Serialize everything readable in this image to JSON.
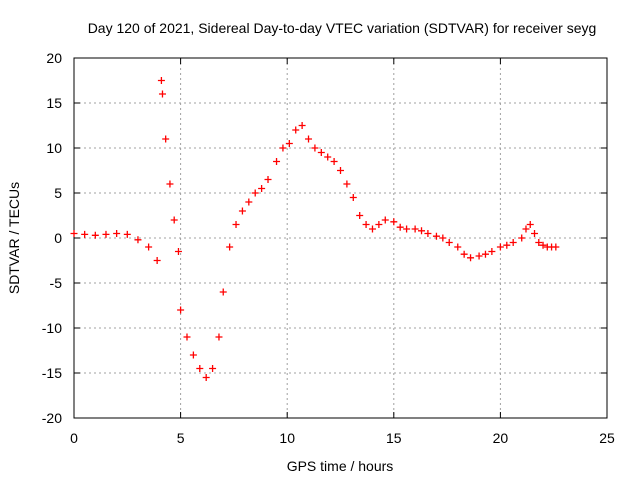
{
  "chart_data": {
    "type": "scatter",
    "title": "Day 120 of 2021, Sidereal Day-to-day VTEC variation (SDTVAR) for receiver seyg",
    "xlabel": "GPS time / hours",
    "ylabel": "SDTVAR / TECUs",
    "xlim": [
      0,
      25
    ],
    "ylim": [
      -20,
      20
    ],
    "xticks": [
      0,
      5,
      10,
      15,
      20,
      25
    ],
    "yticks": [
      -20,
      -15,
      -10,
      -5,
      0,
      5,
      10,
      15,
      20
    ],
    "xtick_labels": [
      "0",
      "5",
      "10",
      "15",
      "20",
      "25"
    ],
    "ytick_labels": [
      "-20",
      "-15",
      "-10",
      "-5",
      "0",
      "5",
      "10",
      "15",
      "20"
    ],
    "grid": true,
    "marker": "+",
    "series_color": "#ff0000",
    "series": [
      {
        "name": "SDTVAR",
        "x": [
          0.0,
          0.5,
          1.0,
          1.5,
          2.0,
          2.5,
          3.0,
          3.5,
          3.9,
          4.1,
          4.15,
          4.3,
          4.5,
          4.7,
          4.9,
          5.0,
          5.3,
          5.6,
          5.9,
          6.2,
          6.5,
          6.8,
          7.0,
          7.3,
          7.6,
          7.9,
          8.2,
          8.5,
          8.8,
          9.1,
          9.5,
          9.8,
          10.1,
          10.4,
          10.7,
          11.0,
          11.3,
          11.6,
          11.9,
          12.2,
          12.5,
          12.8,
          13.1,
          13.4,
          13.7,
          14.0,
          14.3,
          14.6,
          15.0,
          15.3,
          15.6,
          16.0,
          16.3,
          16.6,
          17.0,
          17.3,
          17.6,
          18.0,
          18.3,
          18.6,
          19.0,
          19.3,
          19.6,
          20.0,
          20.3,
          20.6,
          21.0,
          21.2,
          21.4,
          21.6,
          21.8,
          22.0,
          22.2,
          22.4,
          22.6
        ],
        "y": [
          0.5,
          0.4,
          0.3,
          0.4,
          0.5,
          0.4,
          -0.2,
          -1.0,
          -2.5,
          17.5,
          16.0,
          11.0,
          6.0,
          2.0,
          -1.5,
          -8.0,
          -11.0,
          -13.0,
          -14.5,
          -15.5,
          -14.5,
          -11.0,
          -6.0,
          -1.0,
          1.5,
          3.0,
          4.0,
          5.0,
          5.5,
          6.5,
          8.5,
          10.0,
          10.5,
          12.0,
          12.5,
          11.0,
          10.0,
          9.5,
          9.0,
          8.5,
          7.5,
          6.0,
          4.5,
          2.5,
          1.5,
          1.0,
          1.5,
          2.0,
          1.8,
          1.2,
          1.0,
          1.0,
          0.8,
          0.5,
          0.2,
          0.0,
          -0.5,
          -1.0,
          -1.8,
          -2.2,
          -2.0,
          -1.8,
          -1.5,
          -1.0,
          -0.8,
          -0.5,
          0.0,
          1.0,
          1.5,
          0.5,
          -0.5,
          -0.8,
          -1.0,
          -1.0,
          -1.0
        ]
      }
    ]
  }
}
